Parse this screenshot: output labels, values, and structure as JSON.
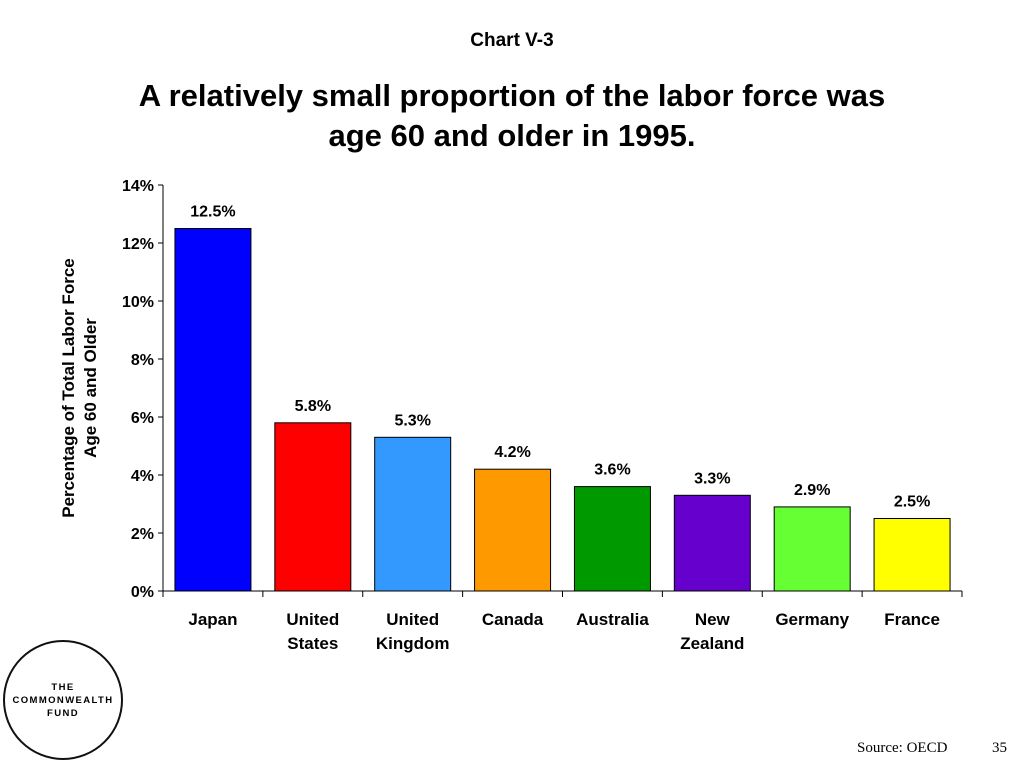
{
  "header": {
    "chart_label": "Chart V-3",
    "title_line1": "A relatively small proportion of the labor force was",
    "title_line2": "age 60 and older in 1995."
  },
  "chart_data": {
    "type": "bar",
    "categories": [
      [
        "Japan"
      ],
      [
        "United",
        "States"
      ],
      [
        "United",
        "Kingdom"
      ],
      [
        "Canada"
      ],
      [
        "Australia"
      ],
      [
        "New",
        "Zealand"
      ],
      [
        "Germany"
      ],
      [
        "France"
      ]
    ],
    "values": [
      12.5,
      5.8,
      5.3,
      4.2,
      3.6,
      3.3,
      2.9,
      2.5
    ],
    "value_labels": [
      "12.5%",
      "5.8%",
      "5.3%",
      "4.2%",
      "3.6%",
      "3.3%",
      "2.9%",
      "2.5%"
    ],
    "colors": [
      "#0000ff",
      "#ff0000",
      "#3399ff",
      "#ff9900",
      "#009900",
      "#6600cc",
      "#66ff33",
      "#ffff00"
    ],
    "ylabel_lines": [
      "Percentage of Total Labor Force",
      "Age 60 and Older"
    ],
    "ylim": [
      0,
      14
    ],
    "yticks": [
      0,
      2,
      4,
      6,
      8,
      10,
      12,
      14
    ],
    "ytick_labels": [
      "0%",
      "2%",
      "4%",
      "6%",
      "8%",
      "10%",
      "12%",
      "14%"
    ],
    "grid": false,
    "legend": "none"
  },
  "footer": {
    "logo_lines": [
      "THE",
      "COMMONWEALTH",
      "FUND"
    ],
    "source": "Source: OECD",
    "page_number": "35"
  }
}
